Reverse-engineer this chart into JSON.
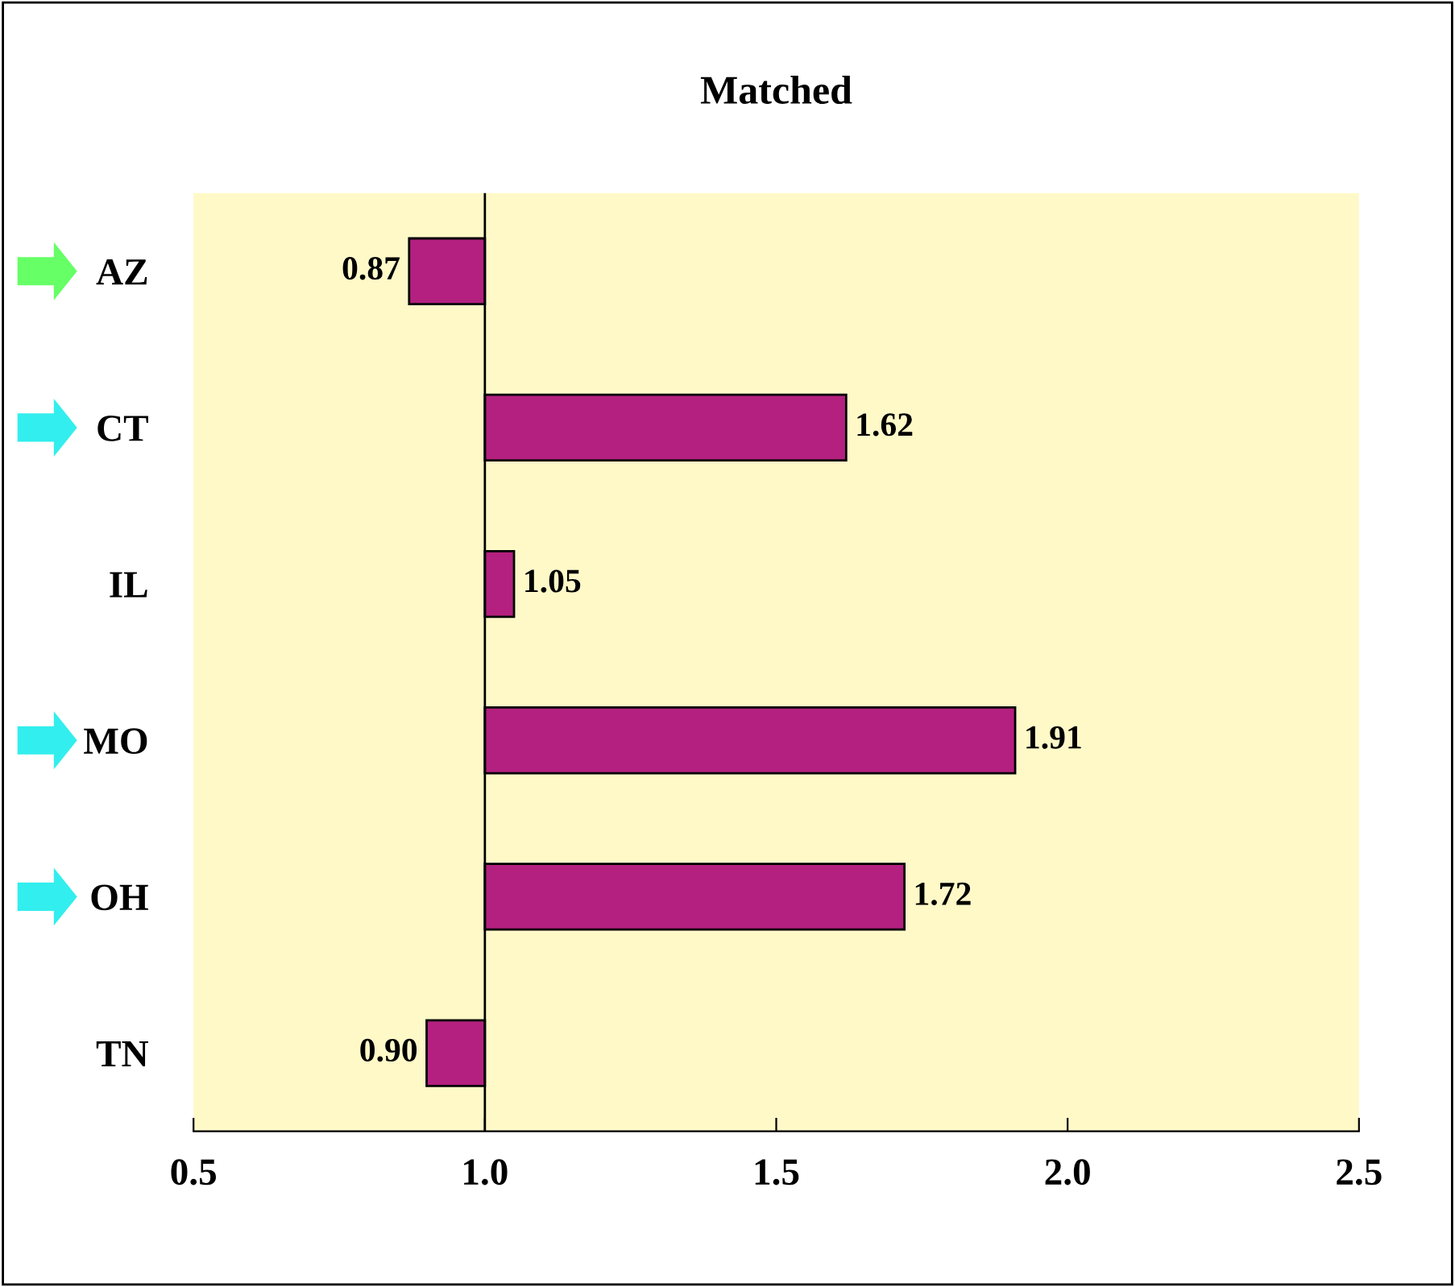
{
  "chart_data": {
    "type": "bar",
    "orientation": "horizontal",
    "title": "Matched",
    "categories": [
      "AZ",
      "CT",
      "IL",
      "MO",
      "OH",
      "TN"
    ],
    "base": [
      1.0,
      1.0,
      1.0,
      1.0,
      1.0,
      1.0
    ],
    "values": [
      -0.13,
      0.62,
      0.05,
      0.91,
      0.72,
      -0.1
    ],
    "value_labels": [
      "0.87",
      "1.62",
      "1.05",
      "1.91",
      "1.72",
      "0.90"
    ],
    "color": "#b4207f",
    "xlim": [
      0.5,
      2.5
    ],
    "xticks": [
      {
        "value": 0.5,
        "label": "0.5"
      },
      {
        "value": 1.0,
        "label": "1.0"
      },
      {
        "value": 1.5,
        "label": "1.5"
      },
      {
        "value": 2.0,
        "label": "2.0"
      },
      {
        "value": 2.5,
        "label": "2.5"
      }
    ],
    "ref_lines": [
      {
        "axis": "x",
        "value": 1.0,
        "color": "#000000"
      }
    ],
    "grid": false,
    "legend": false
  }
}
